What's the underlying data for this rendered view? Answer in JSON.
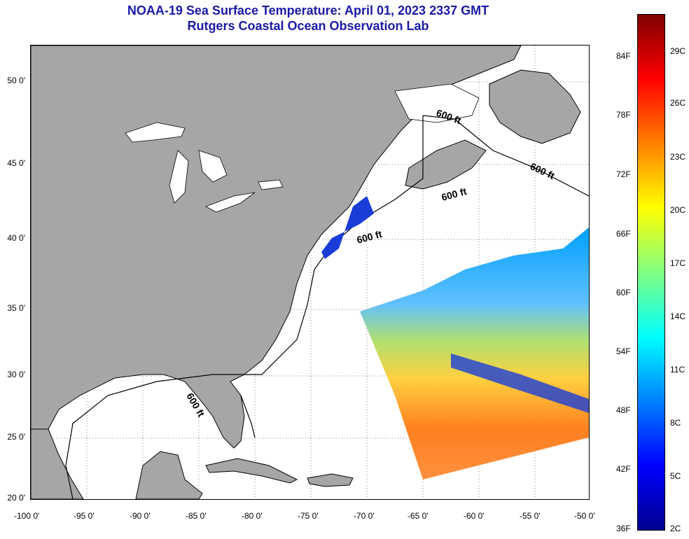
{
  "header": {
    "title": "NOAA-19 Sea Surface Temperature:  April 01, 2023 2337 GMT",
    "subtitle": "Rutgers Coastal Ocean Observation Lab"
  },
  "map": {
    "longitude_labels": [
      "-100 0'",
      "-95 0'",
      "-90 0'",
      "-85 0'",
      "-80 0'",
      "-75 0'",
      "-70 0'",
      "-65 0'",
      "-60 0'",
      "-55 0'",
      "-50 0'"
    ],
    "latitude_labels": [
      "50 0'",
      "45 0'",
      "40 0'",
      "35 0'",
      "30 0'",
      "25 0'",
      "20 0'"
    ],
    "isobath_label": "600 ft",
    "land_color": "#a6a6a6",
    "water_color": "#ffffff"
  },
  "colorbar": {
    "fahrenheit_labels": [
      "84F",
      "78F",
      "72F",
      "66F",
      "60F",
      "54F",
      "48F",
      "42F",
      "36F"
    ],
    "celsius_labels": [
      "29C",
      "26C",
      "23C",
      "20C",
      "17C",
      "14C",
      "11C",
      "8C",
      "5C",
      "2C"
    ],
    "colors": [
      "#7f0000",
      "#ff0000",
      "#ff8000",
      "#ffff00",
      "#80ff80",
      "#00ffff",
      "#0080ff",
      "#0000ff",
      "#00008f"
    ]
  }
}
